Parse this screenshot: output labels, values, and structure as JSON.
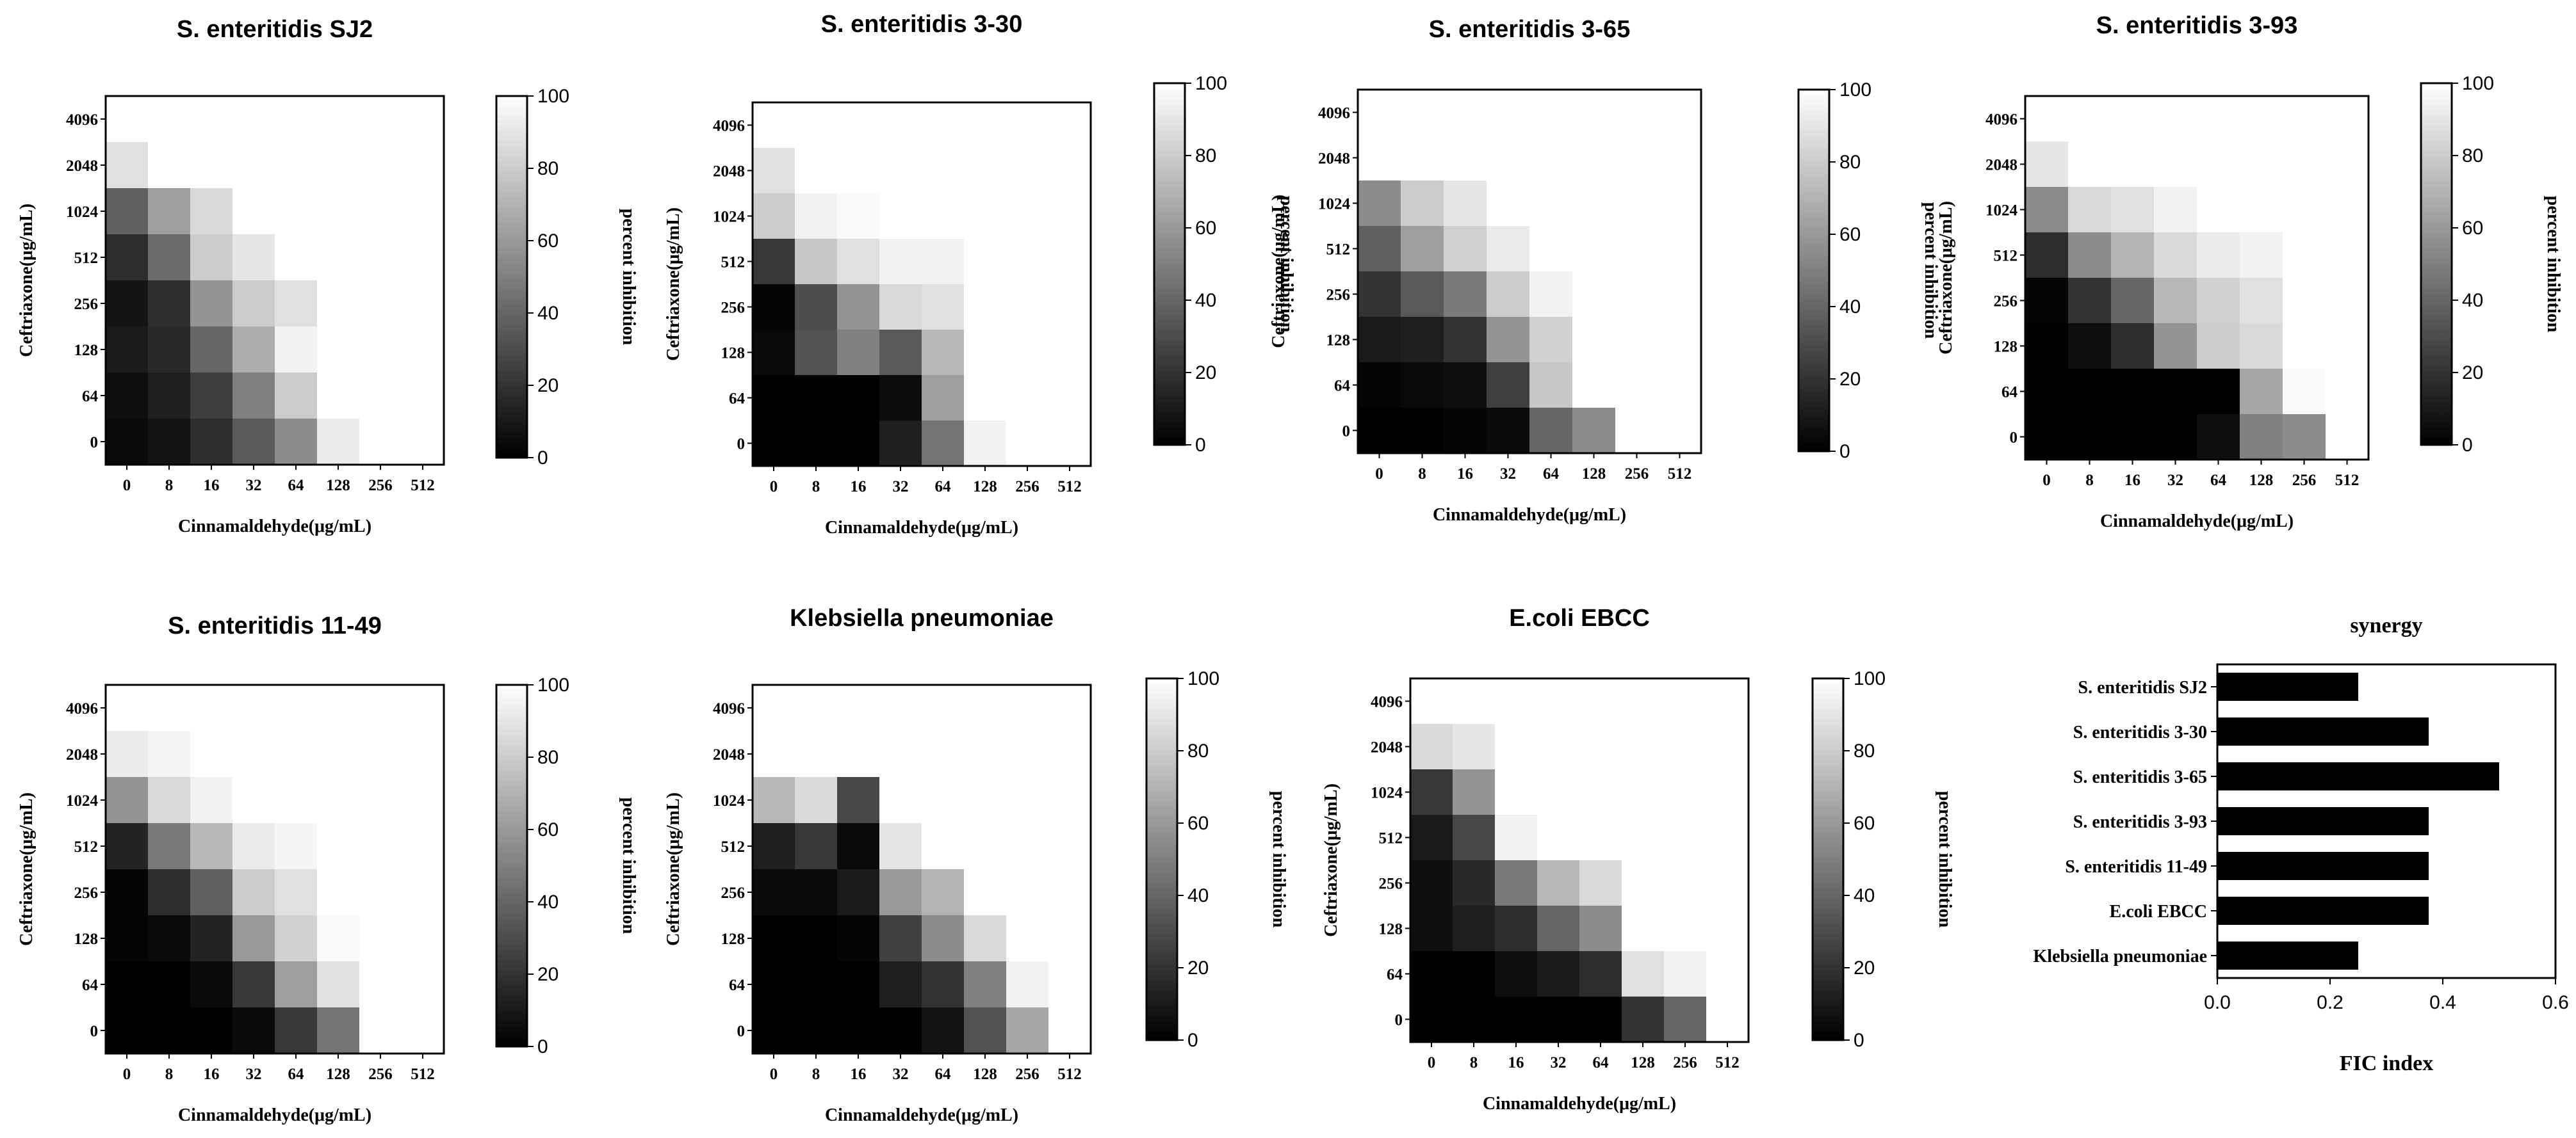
{
  "chart_data": [
    {
      "type": "heatmap",
      "title": "S. enteritidis SJ2",
      "xlabel": "Cinnamaldehyde(μg/mL)",
      "ylabel": "Ceftriaxone(μg/mL)",
      "x_categories": [
        "0",
        "8",
        "16",
        "32",
        "64",
        "128",
        "256",
        "512"
      ],
      "y_categories": [
        "4096",
        "2048",
        "1024",
        "512",
        "256",
        "128",
        "64",
        "0"
      ],
      "colorbar": {
        "label": "percent inhibition",
        "range": [
          0,
          100
        ],
        "ticks": [
          "0",
          "20",
          "40",
          "60",
          "80",
          "100"
        ]
      },
      "values": [
        [
          100,
          100,
          100,
          100,
          100,
          100,
          100,
          100
        ],
        [
          88,
          100,
          100,
          100,
          100,
          100,
          100,
          100
        ],
        [
          38,
          62,
          85,
          100,
          100,
          100,
          100,
          100
        ],
        [
          18,
          42,
          80,
          90,
          100,
          100,
          100,
          100
        ],
        [
          8,
          18,
          58,
          80,
          88,
          100,
          100,
          100
        ],
        [
          10,
          16,
          40,
          68,
          95,
          100,
          100,
          100
        ],
        [
          6,
          12,
          24,
          50,
          80,
          100,
          100,
          100
        ],
        [
          4,
          8,
          18,
          35,
          55,
          92,
          100,
          100
        ]
      ]
    },
    {
      "type": "heatmap",
      "title": "S. enteritidis 3-30",
      "xlabel": "Cinnamaldehyde(μg/mL)",
      "ylabel": "Ceftriaxone(μg/mL)",
      "x_categories": [
        "0",
        "8",
        "16",
        "32",
        "64",
        "128",
        "256",
        "512"
      ],
      "y_categories": [
        "4096",
        "2048",
        "1024",
        "512",
        "256",
        "128",
        "64",
        "0"
      ],
      "colorbar": {
        "label": "percent inhibition",
        "range": [
          0,
          100
        ],
        "ticks": [
          "0",
          "20",
          "40",
          "60",
          "80",
          "100"
        ]
      },
      "values": [
        [
          100,
          100,
          100,
          100,
          100,
          100,
          100,
          100
        ],
        [
          88,
          100,
          100,
          100,
          100,
          100,
          100,
          100
        ],
        [
          80,
          95,
          98,
          100,
          100,
          100,
          100,
          100
        ],
        [
          22,
          78,
          88,
          95,
          95,
          100,
          100,
          100
        ],
        [
          2,
          30,
          58,
          85,
          88,
          100,
          100,
          100
        ],
        [
          4,
          32,
          50,
          35,
          72,
          100,
          100,
          100
        ],
        [
          0,
          0,
          0,
          5,
          62,
          100,
          100,
          100
        ],
        [
          0,
          0,
          0,
          12,
          45,
          95,
          100,
          100
        ]
      ]
    },
    {
      "type": "heatmap",
      "title": "S. enteritidis 3-65",
      "xlabel": "Cinnamaldehyde(μg/mL)",
      "ylabel": "Ceftriaxone(μg/mL)",
      "x_categories": [
        "0",
        "8",
        "16",
        "32",
        "64",
        "128",
        "256",
        "512"
      ],
      "y_categories": [
        "4096",
        "2048",
        "1024",
        "512",
        "256",
        "128",
        "64",
        "0"
      ],
      "colorbar": {
        "label": "percent inhibition",
        "range": [
          0,
          100
        ],
        "ticks": [
          "0",
          "20",
          "40",
          "60",
          "80",
          "100"
        ]
      },
      "values": [
        [
          100,
          100,
          100,
          100,
          100,
          100,
          100,
          100
        ],
        [
          100,
          100,
          100,
          100,
          100,
          100,
          100,
          100
        ],
        [
          55,
          80,
          90,
          100,
          100,
          100,
          100,
          100
        ],
        [
          38,
          62,
          82,
          92,
          100,
          100,
          100,
          100
        ],
        [
          20,
          35,
          48,
          80,
          95,
          100,
          100,
          100
        ],
        [
          10,
          12,
          20,
          58,
          82,
          100,
          100,
          100
        ],
        [
          2,
          4,
          6,
          25,
          78,
          100,
          100,
          100
        ],
        [
          0,
          0,
          2,
          4,
          40,
          55,
          100,
          100
        ]
      ]
    },
    {
      "type": "heatmap",
      "title": "S. enteritidis 3-93",
      "xlabel": "Cinnamaldehyde(μg/mL)",
      "ylabel": "Ceftriaxone(μg/mL)",
      "x_categories": [
        "0",
        "8",
        "16",
        "32",
        "64",
        "128",
        "256",
        "512"
      ],
      "y_categories": [
        "4096",
        "2048",
        "1024",
        "512",
        "256",
        "128",
        "64",
        "0"
      ],
      "colorbar": {
        "label": "percent inhibition",
        "range": [
          0,
          100
        ],
        "ticks": [
          "0",
          "20",
          "40",
          "60",
          "80",
          "100"
        ]
      },
      "values": [
        [
          100,
          100,
          100,
          100,
          100,
          100,
          100,
          100
        ],
        [
          90,
          100,
          100,
          100,
          100,
          100,
          100,
          100
        ],
        [
          55,
          85,
          88,
          95,
          100,
          100,
          100,
          100
        ],
        [
          18,
          55,
          70,
          85,
          92,
          95,
          100,
          100
        ],
        [
          2,
          20,
          40,
          72,
          82,
          88,
          100,
          100
        ],
        [
          0,
          6,
          18,
          58,
          80,
          85,
          100,
          100
        ],
        [
          0,
          0,
          0,
          0,
          0,
          65,
          98,
          100
        ],
        [
          0,
          0,
          0,
          0,
          6,
          50,
          55,
          100
        ]
      ]
    },
    {
      "type": "heatmap",
      "title": "S. enteritidis 11-49",
      "xlabel": "Cinnamaldehyde(μg/mL)",
      "ylabel": "Ceftriaxone(μg/mL)",
      "x_categories": [
        "0",
        "8",
        "16",
        "32",
        "64",
        "128",
        "256",
        "512"
      ],
      "y_categories": [
        "4096",
        "2048",
        "1024",
        "512",
        "256",
        "128",
        "64",
        "0"
      ],
      "colorbar": {
        "label": "percent inhibition",
        "range": [
          0,
          100
        ],
        "ticks": [
          "0",
          "20",
          "40",
          "60",
          "80",
          "100"
        ]
      },
      "values": [
        [
          100,
          100,
          100,
          100,
          100,
          100,
          100,
          100
        ],
        [
          92,
          96,
          100,
          100,
          100,
          100,
          100,
          100
        ],
        [
          58,
          85,
          95,
          100,
          100,
          100,
          100,
          100
        ],
        [
          14,
          48,
          72,
          92,
          96,
          100,
          100,
          100
        ],
        [
          2,
          18,
          38,
          80,
          88,
          100,
          100,
          100
        ],
        [
          2,
          4,
          14,
          60,
          82,
          98,
          100,
          100
        ],
        [
          0,
          0,
          4,
          22,
          62,
          88,
          100,
          100
        ],
        [
          0,
          0,
          0,
          4,
          22,
          45,
          100,
          100
        ]
      ]
    },
    {
      "type": "heatmap",
      "title": "Klebsiella pneumoniae",
      "xlabel": "Cinnamaldehyde(μg/mL)",
      "ylabel": "Ceftriaxone(μg/mL)",
      "x_categories": [
        "0",
        "8",
        "16",
        "32",
        "64",
        "128",
        "256",
        "512"
      ],
      "y_categories": [
        "4096",
        "2048",
        "1024",
        "512",
        "256",
        "128",
        "64",
        "0"
      ],
      "colorbar": {
        "label": "percent inhibition",
        "range": [
          0,
          100
        ],
        "ticks": [
          "0",
          "20",
          "40",
          "60",
          "80",
          "100"
        ]
      },
      "values": [
        [
          100,
          100,
          100,
          100,
          100,
          100,
          100,
          100
        ],
        [
          100,
          100,
          100,
          100,
          100,
          100,
          100,
          100
        ],
        [
          72,
          85,
          28,
          100,
          100,
          100,
          100,
          100
        ],
        [
          12,
          22,
          4,
          90,
          100,
          100,
          100,
          100
        ],
        [
          4,
          4,
          10,
          60,
          70,
          100,
          100,
          100
        ],
        [
          0,
          0,
          2,
          25,
          55,
          85,
          100,
          100
        ],
        [
          0,
          0,
          0,
          12,
          20,
          50,
          95,
          100
        ],
        [
          0,
          0,
          0,
          0,
          8,
          32,
          65,
          100
        ]
      ]
    },
    {
      "type": "heatmap",
      "title": "E.coli  EBCC",
      "xlabel": "Cinnamaldehyde(μg/mL)",
      "ylabel": "Ceftriaxone(μg/mL)",
      "x_categories": [
        "0",
        "8",
        "16",
        "32",
        "64",
        "128",
        "256",
        "512"
      ],
      "y_categories": [
        "4096",
        "2048",
        "1024",
        "512",
        "256",
        "128",
        "64",
        "0"
      ],
      "colorbar": {
        "label": "percent inhibition",
        "range": [
          0,
          100
        ],
        "ticks": [
          "0",
          "20",
          "40",
          "60",
          "80",
          "100"
        ]
      },
      "values": [
        [
          100,
          100,
          100,
          100,
          100,
          100,
          100,
          100
        ],
        [
          85,
          90,
          100,
          100,
          100,
          100,
          100,
          100
        ],
        [
          22,
          58,
          100,
          100,
          100,
          100,
          100,
          100
        ],
        [
          10,
          28,
          95,
          100,
          100,
          100,
          100,
          100
        ],
        [
          6,
          16,
          48,
          72,
          85,
          100,
          100,
          100
        ],
        [
          6,
          12,
          18,
          40,
          55,
          100,
          100,
          100
        ],
        [
          0,
          0,
          6,
          10,
          18,
          88,
          95,
          100
        ],
        [
          0,
          0,
          0,
          0,
          0,
          20,
          40,
          100
        ]
      ]
    },
    {
      "type": "bar",
      "orientation": "horizontal",
      "title": "synergy",
      "xlabel": "FIC index",
      "ylabel": "",
      "categories": [
        "S. enteritidis SJ2",
        "S. enteritidis 3-30",
        "S. enteritidis 3-65",
        "S. enteritidis 3-93",
        "S. enteritidis 11-49",
        "E.coli EBCC",
        "Klebsiella pneumoniae"
      ],
      "values": [
        0.25,
        0.375,
        0.5,
        0.375,
        0.375,
        0.375,
        0.25
      ],
      "xlim": [
        0,
        0.6
      ],
      "x_ticks": [
        "0.0",
        "0.2",
        "0.4",
        "0.6"
      ]
    }
  ]
}
